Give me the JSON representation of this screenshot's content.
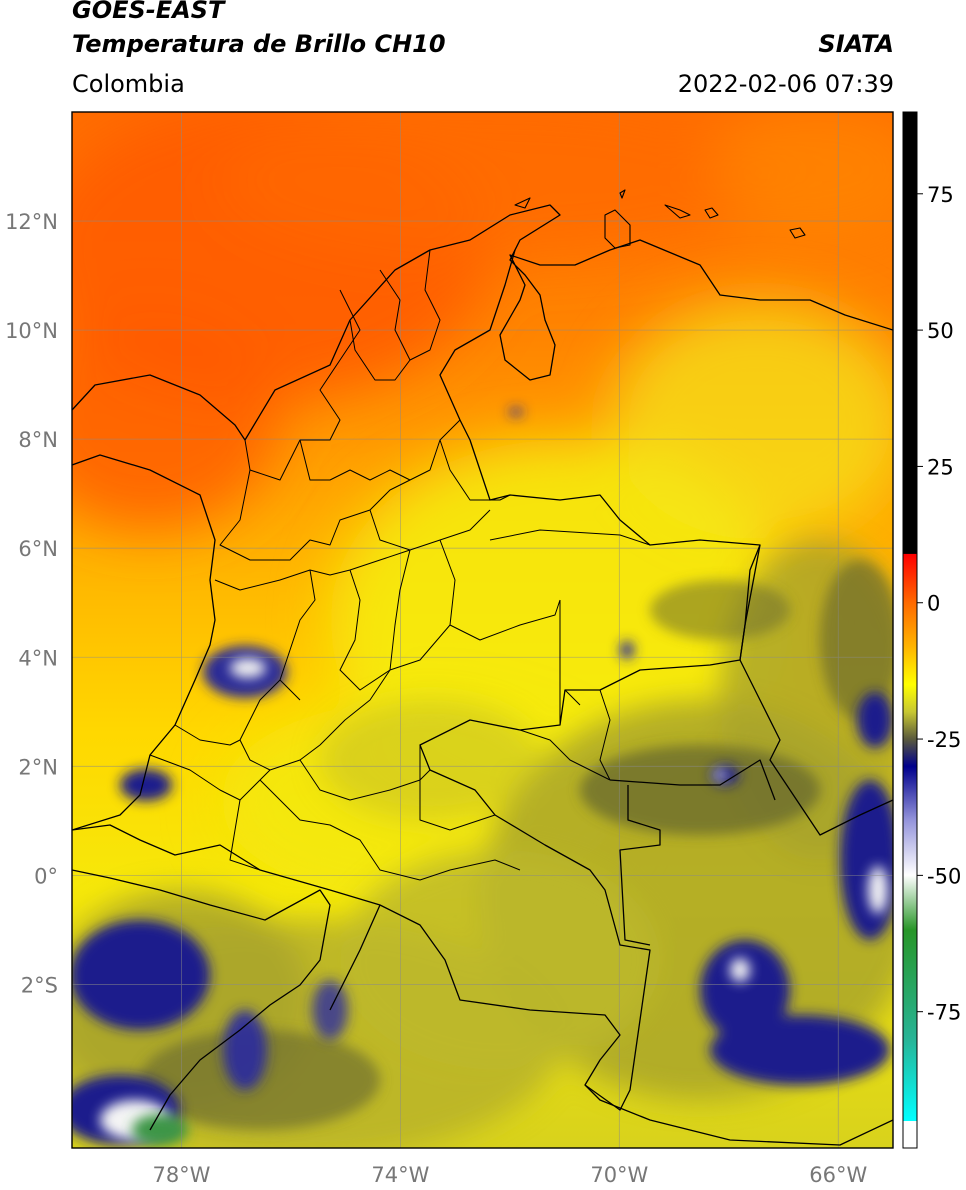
{
  "header": {
    "satellite": "GOES-EAST",
    "product": "Temperatura de Brillo CH10",
    "region": "Colombia",
    "organization": "SIATA",
    "datetime": "2022-02-06 07:39"
  },
  "map": {
    "lon_range": [
      -80,
      -65
    ],
    "lat_range": [
      -5,
      14
    ],
    "lat_ticks": [
      {
        "value": 12,
        "label": "12°N"
      },
      {
        "value": 10,
        "label": "10°N"
      },
      {
        "value": 8,
        "label": "8°N"
      },
      {
        "value": 6,
        "label": "6°N"
      },
      {
        "value": 4,
        "label": "4°N"
      },
      {
        "value": 2,
        "label": "2°N"
      },
      {
        "value": 0,
        "label": "0°"
      },
      {
        "value": -2,
        "label": "2°S"
      }
    ],
    "lon_ticks": [
      {
        "value": -78,
        "label": "78°W"
      },
      {
        "value": -74,
        "label": "74°W"
      },
      {
        "value": -70,
        "label": "70°W"
      },
      {
        "value": -66,
        "label": "66°W"
      }
    ],
    "colors": {
      "warm": "#ff5a00",
      "mid": "#ffb400",
      "cool": "#f3ee05",
      "olive": "#b9b428",
      "dark": "#63642e",
      "blue": "#1e1e8c",
      "white": "#f4f4f4",
      "green": "#3c9646"
    }
  },
  "colorbar": {
    "range": [
      -100,
      90
    ],
    "ticks": [
      {
        "value": 75,
        "label": "75"
      },
      {
        "value": 50,
        "label": "50"
      },
      {
        "value": 25,
        "label": "25"
      },
      {
        "value": 0,
        "label": "0"
      },
      {
        "value": -25,
        "label": "-25"
      },
      {
        "value": -50,
        "label": "-50"
      },
      {
        "value": -75,
        "label": "-75"
      }
    ],
    "stops": [
      {
        "value": 90,
        "color": "#000000"
      },
      {
        "value": 9,
        "color": "#000000"
      },
      {
        "value": 8.9,
        "color": "#ff0000"
      },
      {
        "value": 0,
        "color": "#ff6a00"
      },
      {
        "value": -8,
        "color": "#ffb400"
      },
      {
        "value": -15,
        "color": "#ffff00"
      },
      {
        "value": -20,
        "color": "#c8c832"
      },
      {
        "value": -25,
        "color": "#5a5a3c"
      },
      {
        "value": -30,
        "color": "#00008c"
      },
      {
        "value": -40,
        "color": "#9696dc"
      },
      {
        "value": -50,
        "color": "#ffffff"
      },
      {
        "value": -60,
        "color": "#289628"
      },
      {
        "value": -80,
        "color": "#28b496"
      },
      {
        "value": -95,
        "color": "#00ffff"
      },
      {
        "value": -95.1,
        "color": "#ffffff"
      },
      {
        "value": -100,
        "color": "#ffffff"
      }
    ]
  }
}
